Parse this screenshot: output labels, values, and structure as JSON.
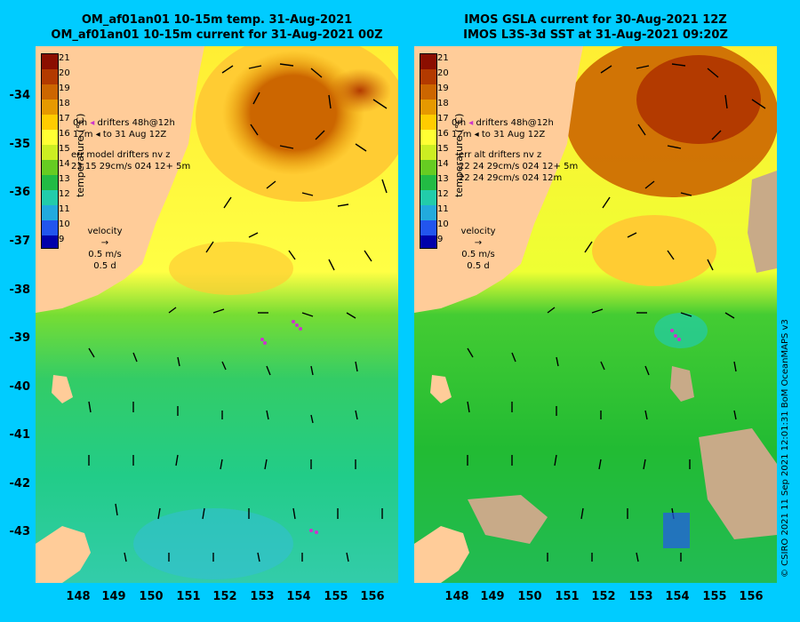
{
  "left_title": {
    "line1": "OM_af01an01 10-15m temp. 31-Aug-2021",
    "line2": "OM_af01an01 10-15m current for 31-Aug-2021 00Z"
  },
  "right_title": {
    "line1": "IMOS GSLA current for 30-Aug-2021 12Z",
    "line2": "IMOS L3S-3d SST at 31-Aug-2021 09:20Z"
  },
  "lat_ticks": [
    "-34",
    "-35",
    "-36",
    "-37",
    "-38",
    "-39",
    "-40",
    "-41",
    "-42",
    "-43"
  ],
  "lon_ticks": [
    "148",
    "149",
    "150",
    "151",
    "152",
    "153",
    "154",
    "155",
    "156"
  ],
  "colorbar": {
    "label": "temperature (°C)",
    "ticks": [
      "21",
      "20",
      "19",
      "18",
      "17",
      "16",
      "15",
      "14",
      "13",
      "12",
      "11",
      "10",
      "9"
    ],
    "colors": [
      "#8b0e00",
      "#b33a00",
      "#cc6600",
      "#e69900",
      "#ffcc00",
      "#ffff33",
      "#ccee22",
      "#66cc22",
      "#22bb44",
      "#22ccaa",
      "#22aadd",
      "#2255ee",
      "#0000aa"
    ]
  },
  "left_legend": {
    "drifters": "drifters 48h@12h",
    "to_date": "to 31 Aug 12Z",
    "depth_0m": "0m",
    "depth_12m": "12m",
    "err_header": "err model drifters nv z",
    "err_row1": "23 15 29cm/s 024 12+ 5m"
  },
  "right_legend": {
    "drifters": "drifters 48h@12h",
    "to_date": "to 31 Aug 12Z",
    "depth_0m": "0m",
    "depth_12m": "12m",
    "err_header": "err alt drifters nv z",
    "err_row1": "22 24 29cm/s 024 12+ 5m",
    "err_row2": "22 24 29cm/s 024 12m"
  },
  "velocity": {
    "label": "velocity",
    "speed": "0.5 m/s",
    "duration": "0.5 d"
  },
  "credit": "© CSIRO 2021  11 Sep 2021 12:01:31 BoM OceanMAPS v3",
  "colors": {
    "background": "#00ccff",
    "land": "#ffcc99",
    "cloud": "#c8aa88"
  }
}
